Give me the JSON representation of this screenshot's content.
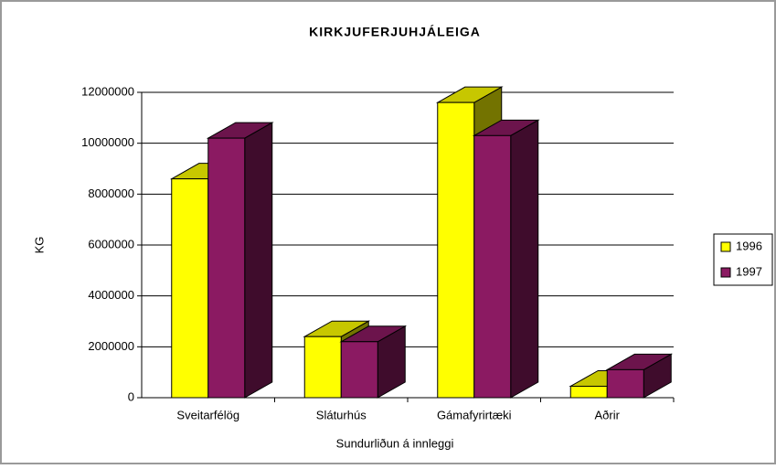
{
  "chart_data": {
    "type": "bar",
    "title": "KIRKJUFERJUHJÁLEIGA",
    "x_label": "Sundurliðun á innleggi",
    "y_label": "KG",
    "categories": [
      "Sveitarfélög",
      "Sláturhús",
      "Gámafyrirtæki",
      "Aðrir"
    ],
    "series": [
      {
        "name": "1996",
        "color": "#ffff00",
        "values": [
          8600000,
          2400000,
          11600000,
          450000
        ]
      },
      {
        "name": "1997",
        "color": "#8b1a62",
        "values": [
          10200000,
          2200000,
          10300000,
          1100000
        ]
      }
    ],
    "ylim": [
      0,
      12000000
    ],
    "yticks": [
      0,
      2000000,
      4000000,
      6000000,
      8000000,
      10000000,
      12000000
    ],
    "grid": true,
    "legend": "right",
    "three_d": true
  }
}
